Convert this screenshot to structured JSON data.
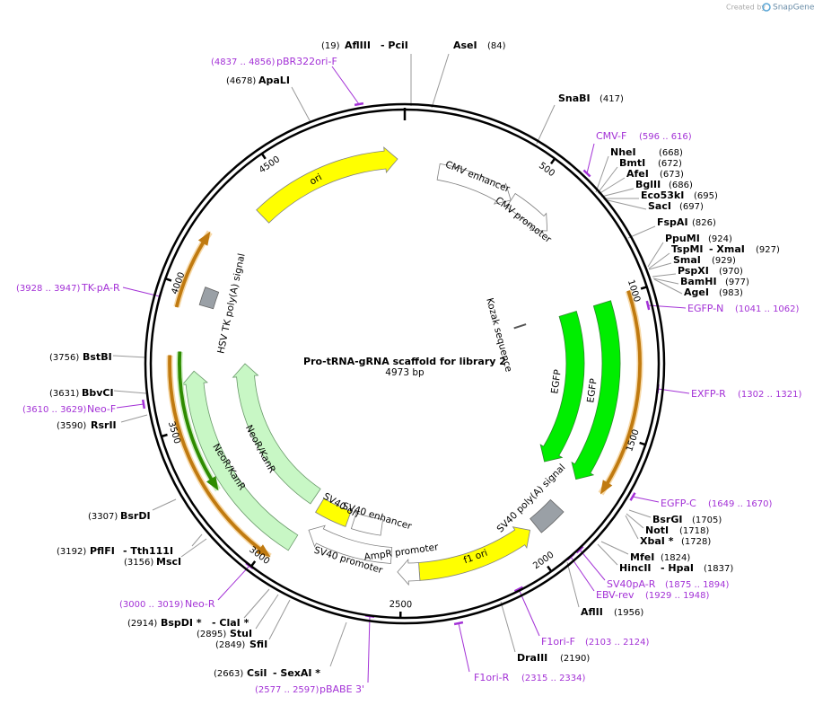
{
  "credit": {
    "prefix": "Created by",
    "brand": "SnapGene"
  },
  "title": "Pro-tRNA-gRNA scaffold for library 2",
  "length": 4973,
  "length_unit": "bp",
  "ruler": [
    500,
    1000,
    1500,
    2000,
    2500,
    3000,
    3500,
    4000,
    4500
  ],
  "features": [
    "ori",
    "CMV enhancer",
    "CMV promoter",
    "Kozak sequence",
    "EGFP",
    "EGFP",
    "SV40 poly(A) signal",
    "f1 ori",
    "AmpR promoter",
    "SV40 promoter",
    "SV40 enhancer",
    "SV40 ori",
    "NeoR/KanR",
    "NeoR/KanR",
    "HSV TK poly(A) signal"
  ],
  "enzymes": [
    {
      "names": [
        "AflIII",
        "- PciI"
      ],
      "site": "(19)"
    },
    {
      "names": [
        "AseI"
      ],
      "site": "(84)"
    },
    {
      "names": [
        "SnaBI"
      ],
      "site": "(417)"
    },
    {
      "names": [
        "NheI"
      ],
      "site": "(668)"
    },
    {
      "names": [
        "BmtI"
      ],
      "site": "(672)"
    },
    {
      "names": [
        "AfeI"
      ],
      "site": "(673)"
    },
    {
      "names": [
        "BglII"
      ],
      "site": "(686)"
    },
    {
      "names": [
        "Eco53kI"
      ],
      "site": "(695)"
    },
    {
      "names": [
        "SacI"
      ],
      "site": "(697)"
    },
    {
      "names": [
        "FspAI"
      ],
      "site": "(826)"
    },
    {
      "names": [
        "PpuMI"
      ],
      "site": "(924)"
    },
    {
      "names": [
        "TspMI",
        "- XmaI"
      ],
      "site": "(927)"
    },
    {
      "names": [
        "SmaI"
      ],
      "site": "(929)"
    },
    {
      "names": [
        "PspXI"
      ],
      "site": "(970)"
    },
    {
      "names": [
        "BamHI"
      ],
      "site": "(977)"
    },
    {
      "names": [
        "AgeI"
      ],
      "site": "(983)"
    },
    {
      "names": [
        "BsrGI"
      ],
      "site": "(1705)"
    },
    {
      "names": [
        "NotI"
      ],
      "site": "(1718)"
    },
    {
      "names": [
        "XbaI *"
      ],
      "site": "(1728)"
    },
    {
      "names": [
        "MfeI"
      ],
      "site": "(1824)"
    },
    {
      "names": [
        "HincII",
        "- HpaI"
      ],
      "site": "(1837)"
    },
    {
      "names": [
        "AflII"
      ],
      "site": "(1956)"
    },
    {
      "names": [
        "DraIII"
      ],
      "site": "(2190)"
    },
    {
      "names": [
        "CsiI",
        "- SexAI *"
      ],
      "site": "(2663)"
    },
    {
      "names": [
        "SfiI"
      ],
      "site": "(2849)"
    },
    {
      "names": [
        "StuI"
      ],
      "site": "(2895)"
    },
    {
      "names": [
        "BspDI *",
        "- ClaI *"
      ],
      "site": "(2914)"
    },
    {
      "names": [
        "MscI"
      ],
      "site": "(3156)"
    },
    {
      "names": [
        "PflFI",
        "- Tth111I"
      ],
      "site": "(3192)"
    },
    {
      "names": [
        "BsrDI"
      ],
      "site": "(3307)"
    },
    {
      "names": [
        "RsrII"
      ],
      "site": "(3590)"
    },
    {
      "names": [
        "BbvCI"
      ],
      "site": "(3631)"
    },
    {
      "names": [
        "BstBI"
      ],
      "site": "(3756)"
    },
    {
      "names": [
        "ApaLI"
      ],
      "site": "(4678)"
    }
  ],
  "primers": [
    {
      "name": "pBR322ori-F",
      "range": "(4837 .. 4856)"
    },
    {
      "name": "CMV-F",
      "range": "(596 .. 616)"
    },
    {
      "name": "EGFP-N",
      "range": "(1041 .. 1062)"
    },
    {
      "name": "EXFP-R",
      "range": "(1302 .. 1321)"
    },
    {
      "name": "EGFP-C",
      "range": "(1649 .. 1670)"
    },
    {
      "name": "SV40pA-R",
      "range": "(1875 .. 1894)"
    },
    {
      "name": "EBV-rev",
      "range": "(1929 .. 1948)"
    },
    {
      "name": "F1ori-F",
      "range": "(2103 .. 2124)"
    },
    {
      "name": "F1ori-R",
      "range": "(2315 .. 2334)"
    },
    {
      "name": "pBABE 3'",
      "range": "(2577 .. 2597)"
    },
    {
      "name": "Neo-R",
      "range": "(3000 .. 3019)"
    },
    {
      "name": "Neo-F",
      "range": "(3610 .. 3629)"
    },
    {
      "name": "TK-pA-R",
      "range": "(3928 .. 3947)"
    }
  ]
}
